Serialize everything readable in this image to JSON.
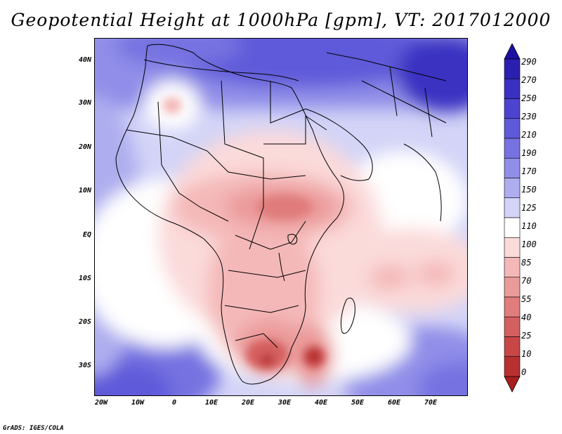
{
  "title": "Geopotential Height at 1000hPa [gpm], VT: 2017012000",
  "footer": "GrADS: IGES/COLA",
  "map": {
    "variable": "Geopotential Height",
    "level": "1000hPa",
    "units": "gpm",
    "valid_time": "2017012000",
    "lon_range": [
      -22,
      80
    ],
    "lat_range": [
      -37,
      45
    ],
    "lat_labels": [
      "40N",
      "30N",
      "20N",
      "10N",
      "EQ",
      "10S",
      "20S",
      "30S"
    ],
    "lon_labels": [
      "20W",
      "10W",
      "0",
      "10E",
      "20E",
      "30E",
      "40E",
      "50E",
      "60E",
      "70E"
    ],
    "colors": {
      "c290": "#1c10a0",
      "c270": "#2a1fb0",
      "c250": "#3a30c2",
      "c230": "#4c44d0",
      "c210": "#5f5ad9",
      "c190": "#7672e1",
      "c170": "#908ee8",
      "c150": "#aeadef",
      "c125": "#d3d4f7",
      "c110": "#ffffff",
      "c100": "#fbdada",
      "c85": "#f4b8b8",
      "c70": "#eb9a9a",
      "c55": "#e07c7c",
      "c40": "#d45f5f",
      "c25": "#c84646",
      "c10": "#b83030",
      "c0": "#a81f1f"
    }
  },
  "colorbar": {
    "labels": [
      "290",
      "270",
      "250",
      "230",
      "210",
      "190",
      "170",
      "150",
      "125",
      "110",
      "100",
      "85",
      "70",
      "55",
      "40",
      "25",
      "10",
      "0"
    ],
    "colors": [
      "#1c10a0",
      "#2a1fb0",
      "#3a30c2",
      "#4c44d0",
      "#5f5ad9",
      "#7672e1",
      "#908ee8",
      "#aeadef",
      "#d3d4f7",
      "#ffffff",
      "#fbdada",
      "#f4b8b8",
      "#eb9a9a",
      "#e07c7c",
      "#d45f5f",
      "#c84646",
      "#b83030",
      "#a81f1f"
    ]
  }
}
